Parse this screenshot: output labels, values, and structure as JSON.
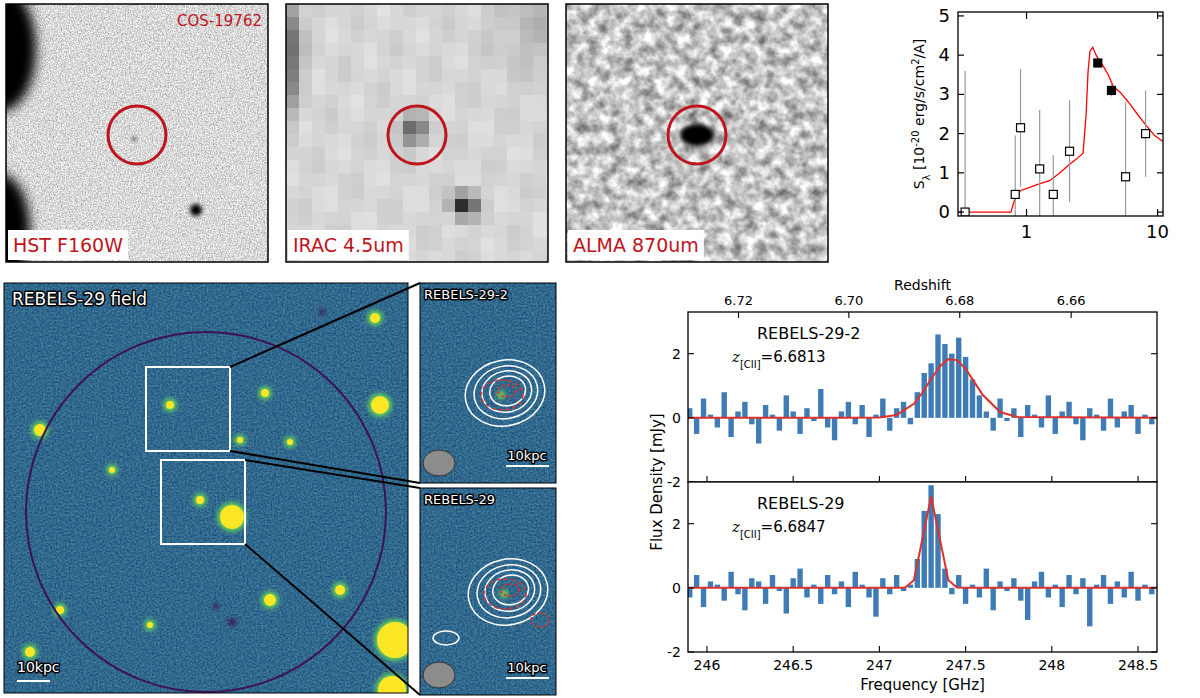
{
  "images": [
    {
      "label": "HST F160W",
      "title": "COS-19762"
    },
    {
      "label": "IRAC 4.5um"
    },
    {
      "label": "ALMA 870um"
    }
  ],
  "field": {
    "title": "REBELS-29 field",
    "scale_bar": "10kpc",
    "insets": [
      {
        "title": "REBELS-29-2",
        "scale_bar": "10kpc"
      },
      {
        "title": "REBELS-29",
        "scale_bar": "10kpc"
      }
    ]
  },
  "chart_data": [
    {
      "type": "scatter",
      "log": "x",
      "xlim": [
        0.3,
        11
      ],
      "ylim": [
        -0.1,
        5.1
      ],
      "xticks": [
        1,
        10
      ],
      "yticks": [
        0,
        1,
        2,
        3,
        4,
        5
      ],
      "y_label": [
        "S",
        "λ",
        " [10",
        "-20",
        " erg/s/cm",
        "2",
        "/A]"
      ],
      "series": [
        {
          "type": "line",
          "color": "#ff0000",
          "x": [
            0.3,
            0.76,
            0.8,
            0.85,
            0.9,
            1.0,
            1.2,
            1.5,
            1.8,
            2.1,
            2.4,
            2.7,
            2.85,
            2.95,
            3.05,
            3.2,
            3.4,
            3.6,
            3.8,
            4.2,
            4.6,
            5.2,
            6.0,
            7.0,
            8.0,
            9.5,
            11
          ],
          "values": [
            0,
            0,
            0.25,
            0.45,
            0.55,
            0.6,
            0.7,
            0.8,
            1.0,
            1.2,
            1.35,
            1.5,
            2.5,
            3.6,
            4.1,
            4.2,
            4.0,
            3.85,
            3.75,
            3.5,
            3.2,
            3.05,
            2.8,
            2.5,
            2.25,
            1.95,
            1.8
          ]
        },
        {
          "type": "scatter",
          "marker": "square_open",
          "color": "#000000",
          "x": [
            0.34,
            0.82,
            0.9,
            1.26,
            1.6,
            2.13,
            5.7,
            8.1
          ],
          "values": [
            0.0,
            0.45,
            2.15,
            1.1,
            0.45,
            1.55,
            0.9,
            2.0
          ],
          "errors": [
            3.6,
            1.5,
            1.5,
            1.5,
            1.0,
            1.3,
            1.9,
            1.1
          ]
        },
        {
          "type": "scatter",
          "marker": "square_filled",
          "color": "#000000",
          "x": [
            3.5,
            4.45
          ],
          "values": [
            3.8,
            3.1
          ],
          "errors": [
            0.1,
            0.15
          ]
        }
      ]
    },
    {
      "type": "bar",
      "title": "REBELS-29-2",
      "annotation": [
        "z",
        "[CII]",
        "=6.6813"
      ],
      "x": [
        245.9,
        245.94,
        245.98,
        246.02,
        246.06,
        246.1,
        246.14,
        246.18,
        246.22,
        246.26,
        246.3,
        246.34,
        246.38,
        246.42,
        246.46,
        246.5,
        246.54,
        246.58,
        246.62,
        246.66,
        246.7,
        246.74,
        246.78,
        246.82,
        246.86,
        246.9,
        246.94,
        246.98,
        247.02,
        247.06,
        247.1,
        247.14,
        247.18,
        247.22,
        247.26,
        247.3,
        247.34,
        247.38,
        247.42,
        247.46,
        247.5,
        247.54,
        247.58,
        247.62,
        247.66,
        247.7,
        247.74,
        247.78,
        247.82,
        247.86,
        247.9,
        247.94,
        247.98,
        248.02,
        248.06,
        248.1,
        248.14,
        248.18,
        248.22,
        248.26,
        248.3,
        248.34,
        248.38,
        248.42,
        248.46,
        248.5,
        248.54,
        248.58
      ],
      "series": [
        {
          "type": "bar",
          "color": "#3f7cb5",
          "values": [
            0.3,
            -0.5,
            0.6,
            0.1,
            -0.3,
            0.8,
            -0.6,
            0.2,
            0.5,
            -0.2,
            -0.8,
            0.4,
            0.1,
            -0.4,
            0.7,
            0.2,
            -0.5,
            0.3,
            -0.1,
            0.9,
            -0.3,
            -0.7,
            0.2,
            0.5,
            -0.2,
            0.4,
            -0.6,
            0.1,
            0.6,
            -0.4,
            0.3,
            0.5,
            -0.2,
            0.8,
            1.4,
            1.7,
            2.6,
            2.3,
            2.0,
            2.5,
            1.9,
            1.2,
            0.7,
            0.2,
            -0.4,
            0.6,
            -0.1,
            0.3,
            -0.6,
            0.4,
            0.1,
            -0.3,
            0.7,
            -0.5,
            0.2,
            0.5,
            -0.2,
            -0.7,
            0.3,
            0.1,
            -0.4,
            0.6,
            -0.3,
            0.2,
            0.4,
            -0.5,
            0.1,
            -0.2
          ]
        },
        {
          "type": "line",
          "color": "#e0302c",
          "x": [
            245.89,
            246.8,
            247.0,
            247.1,
            247.2,
            247.25,
            247.3,
            247.35,
            247.4,
            247.45,
            247.5,
            247.55,
            247.6,
            247.7,
            247.8,
            248.61
          ],
          "values": [
            0,
            0,
            0.01,
            0.09,
            0.44,
            0.79,
            1.21,
            1.6,
            1.83,
            1.8,
            1.53,
            1.12,
            0.71,
            0.18,
            0.03,
            0
          ]
        }
      ],
      "xlim": [
        245.89,
        248.61
      ],
      "ylim": [
        -2,
        3.3
      ],
      "xticks": [
        246,
        246.5,
        247,
        247.5,
        248,
        248.5
      ],
      "yticks": [
        -2,
        0,
        2
      ],
      "x2ticks": [
        {
          "value": 246.183,
          "label": "6.72"
        },
        {
          "value": 246.823,
          "label": "6.70"
        },
        {
          "value": 247.466,
          "label": "6.68"
        },
        {
          "value": 248.112,
          "label": "6.66"
        }
      ],
      "x2_label": "Redshift",
      "y_label": "Flux Density [mJy]",
      "tick_labels": "y"
    },
    {
      "type": "bar",
      "title": "REBELS-29",
      "annotation": [
        "z",
        "[CII]",
        "=6.6847"
      ],
      "x": [
        245.9,
        245.94,
        245.98,
        246.02,
        246.06,
        246.1,
        246.14,
        246.18,
        246.22,
        246.26,
        246.3,
        246.34,
        246.38,
        246.42,
        246.46,
        246.5,
        246.54,
        246.58,
        246.62,
        246.66,
        246.7,
        246.74,
        246.78,
        246.82,
        246.86,
        246.9,
        246.94,
        246.98,
        247.02,
        247.06,
        247.1,
        247.14,
        247.18,
        247.22,
        247.26,
        247.3,
        247.34,
        247.38,
        247.42,
        247.46,
        247.5,
        247.54,
        247.58,
        247.62,
        247.66,
        247.7,
        247.74,
        247.78,
        247.82,
        247.86,
        247.9,
        247.94,
        247.98,
        248.02,
        248.06,
        248.1,
        248.14,
        248.18,
        248.22,
        248.26,
        248.3,
        248.34,
        248.38,
        248.42,
        248.46,
        248.5,
        248.54,
        248.58
      ],
      "series": [
        {
          "type": "bar",
          "color": "#3f7cb5",
          "values": [
            -0.3,
            0.4,
            -0.6,
            0.2,
            0.1,
            -0.4,
            0.5,
            -0.2,
            -0.7,
            0.3,
            0.2,
            -0.5,
            0.4,
            -0.1,
            -0.8,
            0.3,
            0.6,
            -0.3,
            0.1,
            -0.5,
            0.4,
            -0.2,
            0.2,
            -0.6,
            0.5,
            0.1,
            -0.3,
            -0.9,
            0.3,
            -0.2,
            0.4,
            -0.1,
            0.1,
            0.9,
            2.4,
            3.2,
            2.3,
            0.6,
            -0.2,
            0.4,
            -0.5,
            0.1,
            -0.3,
            0.6,
            -0.7,
            0.2,
            -0.1,
            0.3,
            -0.4,
            -1.0,
            0.2,
            0.5,
            -0.3,
            0.1,
            -0.6,
            0.4,
            -0.2,
            0.3,
            -1.2,
            0.1,
            0.4,
            -0.5,
            0.2,
            -0.3,
            0.5,
            -0.4,
            0.1,
            -0.2
          ]
        },
        {
          "type": "line",
          "color": "#e0302c",
          "x": [
            245.89,
            247.1,
            247.15,
            247.2,
            247.25,
            247.3,
            247.35,
            247.4,
            247.45,
            247.5,
            248.61
          ],
          "values": [
            0,
            0,
            0.01,
            0.24,
            1.54,
            2.85,
            1.54,
            0.24,
            0.01,
            0,
            0
          ]
        }
      ],
      "xlim": [
        245.89,
        248.61
      ],
      "ylim": [
        -2,
        3.3
      ],
      "xticks": [
        246,
        246.5,
        247,
        247.5,
        248,
        248.5
      ],
      "yticks": [
        -2,
        0,
        2
      ],
      "x_label": "Frequency [GHz]"
    }
  ]
}
